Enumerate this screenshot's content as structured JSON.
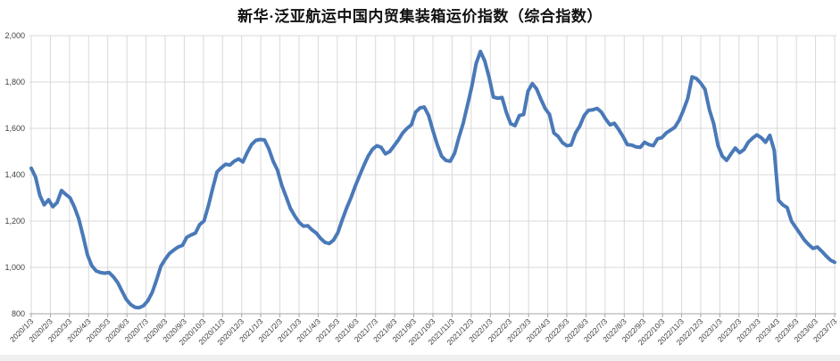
{
  "title": "新华·泛亚航运中国内贸集装箱运价指数（综合指数）",
  "chart_data": {
    "type": "line",
    "title": "新华·泛亚航运中国内贸集装箱运价指数（综合指数）",
    "series_name": "综合指数",
    "frequency": "weekly",
    "x_start": "2020/1/3",
    "x_end": "2023/7/3",
    "xlabel": "",
    "ylabel": "",
    "ylim": [
      800,
      2000
    ],
    "y_tick_step": 200,
    "grid": true,
    "legend_position": "none",
    "line_color": "#4a79b8",
    "grid_color": "#d9d9d9",
    "axis_color": "#a6a6a6",
    "label_color": "#404040",
    "y_tick_labels": [
      "2,000",
      "1,800",
      "1,600",
      "1,400",
      "1,200",
      "1,000",
      "800"
    ],
    "y_tick_values": [
      2000,
      1800,
      1600,
      1400,
      1200,
      1000,
      800
    ],
    "x_tick_labels": [
      "2020/1/3",
      "2020/2/3",
      "2020/3/3",
      "2020/4/3",
      "2020/5/3",
      "2020/6/3",
      "2020/7/3",
      "2020/8/3",
      "2020/9/3",
      "2020/10/3",
      "2020/11/3",
      "2020/12/3",
      "2021/1/3",
      "2021/2/3",
      "2021/3/3",
      "2021/4/3",
      "2021/5/3",
      "2021/6/3",
      "2021/7/3",
      "2021/8/3",
      "2021/9/3",
      "2021/10/3",
      "2021/11/3",
      "2021/12/3",
      "2022/1/3",
      "2022/2/3",
      "2022/3/3",
      "2022/4/3",
      "2022/5/3",
      "2022/6/3",
      "2022/7/3",
      "2022/8/3",
      "2022/9/3",
      "2022/10/3",
      "2022/11/3",
      "2022/12/3",
      "2023/1/3",
      "2023/2/3",
      "2023/3/3",
      "2023/4/3",
      "2023/5/3",
      "2023/6/3",
      "2023/7/3"
    ],
    "values": [
      1428,
      1390,
      1310,
      1270,
      1292,
      1262,
      1280,
      1332,
      1315,
      1300,
      1260,
      1210,
      1135,
      1055,
      1008,
      985,
      978,
      975,
      978,
      960,
      935,
      898,
      862,
      840,
      828,
      826,
      835,
      856,
      892,
      945,
      1005,
      1035,
      1060,
      1075,
      1088,
      1095,
      1130,
      1140,
      1148,
      1185,
      1200,
      1265,
      1340,
      1412,
      1430,
      1445,
      1442,
      1458,
      1468,
      1455,
      1495,
      1530,
      1548,
      1552,
      1550,
      1512,
      1458,
      1420,
      1355,
      1305,
      1255,
      1222,
      1195,
      1178,
      1180,
      1162,
      1148,
      1125,
      1108,
      1103,
      1118,
      1150,
      1205,
      1255,
      1300,
      1350,
      1395,
      1440,
      1480,
      1510,
      1525,
      1518,
      1490,
      1500,
      1525,
      1550,
      1580,
      1600,
      1615,
      1670,
      1688,
      1692,
      1655,
      1590,
      1530,
      1480,
      1462,
      1458,
      1492,
      1560,
      1622,
      1700,
      1780,
      1880,
      1932,
      1890,
      1820,
      1735,
      1730,
      1733,
      1668,
      1620,
      1612,
      1655,
      1660,
      1760,
      1793,
      1770,
      1725,
      1685,
      1660,
      1580,
      1565,
      1538,
      1525,
      1528,
      1580,
      1610,
      1655,
      1678,
      1680,
      1686,
      1670,
      1640,
      1615,
      1622,
      1595,
      1565,
      1530,
      1528,
      1520,
      1518,
      1540,
      1530,
      1525,
      1555,
      1560,
      1580,
      1592,
      1605,
      1635,
      1678,
      1730,
      1822,
      1815,
      1795,
      1768,
      1680,
      1620,
      1525,
      1480,
      1462,
      1490,
      1515,
      1495,
      1508,
      1540,
      1558,
      1572,
      1560,
      1540,
      1570,
      1505,
      1290,
      1270,
      1258,
      1200,
      1172,
      1145,
      1118,
      1098,
      1082,
      1088,
      1070,
      1050,
      1032,
      1022
    ]
  }
}
